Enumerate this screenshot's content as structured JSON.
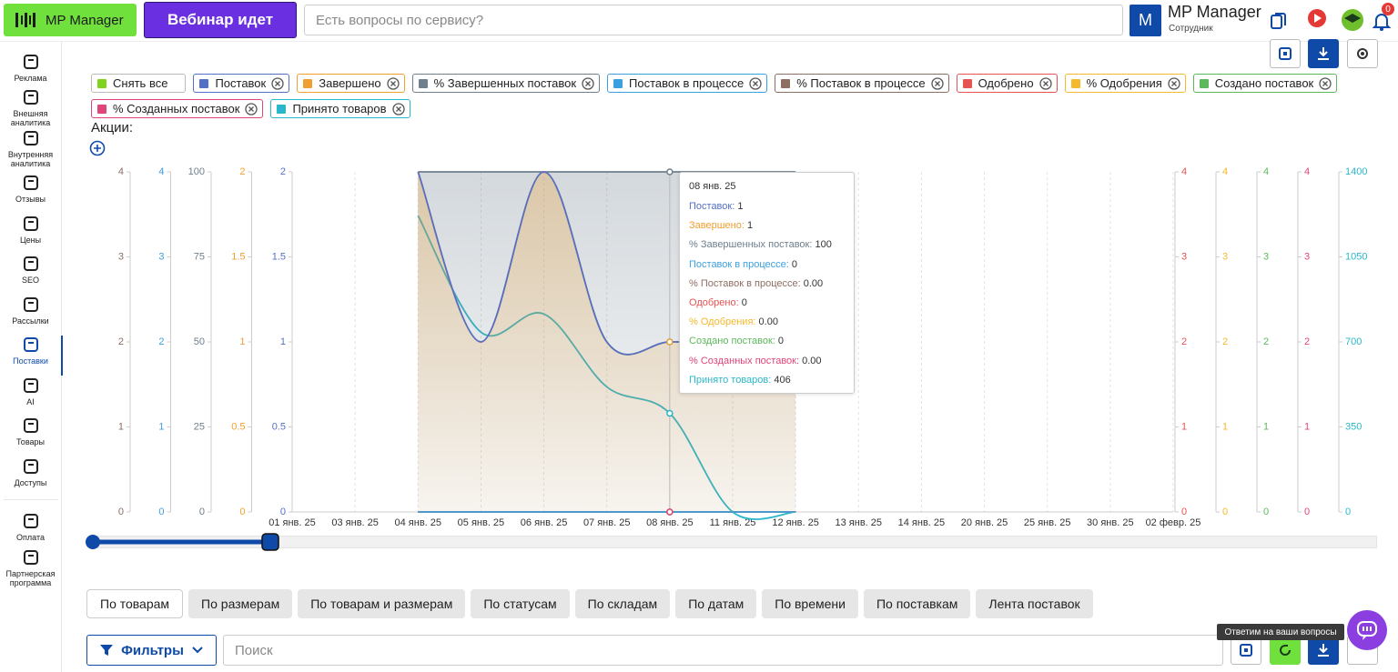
{
  "header": {
    "logo": "MP Manager",
    "webinar": "Вебинар идет",
    "search_placeholder": "Есть вопросы по сервису?",
    "avatar": "M",
    "user_name": "MP Manager",
    "user_role": "Сотрудник",
    "notifications": 0
  },
  "sidebar": {
    "active": 7,
    "items": [
      "Реклама",
      "Внешняя аналитика",
      "Внутренняя аналитика",
      "Отзывы",
      "Цены",
      "SEO",
      "Рассылки",
      "Поставки",
      "AI",
      "Товары",
      "Доступы",
      "Оплата",
      "Партнерская программа"
    ]
  },
  "legend": {
    "clear_all": "Снять все"
  },
  "promo_label": "Акции:",
  "chart_data": {
    "type": "line",
    "grid": true,
    "tooltip_index": 6,
    "categories": [
      "01 янв. 25",
      "03 янв. 25",
      "04 янв. 25",
      "05 янв. 25",
      "06 янв. 25",
      "07 янв. 25",
      "08 янв. 25",
      "11 янв. 25",
      "12 янв. 25",
      "13 янв. 25",
      "14 янв. 25",
      "20 янв. 25",
      "25 янв. 25",
      "30 янв. 25",
      "02 февр. 25"
    ],
    "series": [
      {
        "name": "Поставок",
        "color": "#5470c6",
        "axis_side": "left",
        "ylim": [
          0,
          2
        ],
        "yticks": [
          0,
          0.5,
          1,
          1.5,
          2
        ],
        "values": [
          null,
          null,
          2,
          1,
          2,
          1,
          1,
          1,
          1,
          null,
          null,
          null,
          null,
          null,
          null
        ]
      },
      {
        "name": "Завершено",
        "color": "#f0a030",
        "axis_side": "left",
        "area": true,
        "ylim": [
          0,
          2
        ],
        "yticks": [
          0,
          0.5,
          1,
          1.5,
          2
        ],
        "values": [
          null,
          null,
          2,
          1,
          2,
          1,
          1,
          1,
          1,
          null,
          null,
          null,
          null,
          null,
          null
        ]
      },
      {
        "name": "% Завершенных поставок",
        "color": "#6e7f8d",
        "axis_side": "left",
        "area": true,
        "ylim": [
          0,
          100
        ],
        "yticks": [
          0,
          25,
          50,
          75,
          100
        ],
        "values": [
          null,
          null,
          100,
          100,
          100,
          100,
          100,
          100,
          100,
          null,
          null,
          null,
          null,
          null,
          null
        ]
      },
      {
        "name": "Поставок в процессе",
        "color": "#3ba0e0",
        "axis_side": "left",
        "ylim": [
          0,
          4
        ],
        "yticks": [
          0,
          1,
          2,
          3,
          4
        ],
        "values": [
          null,
          null,
          0,
          0,
          0,
          0,
          0,
          0,
          0,
          null,
          null,
          null,
          null,
          null,
          null
        ]
      },
      {
        "name": "% Поставок в процессе",
        "color": "#8d6e63",
        "axis_side": "left",
        "ylim": [
          0,
          4
        ],
        "yticks": [
          0,
          1,
          2,
          3,
          4
        ],
        "values": [
          null,
          null,
          0,
          0,
          0,
          0,
          0,
          0,
          0,
          null,
          null,
          null,
          null,
          null,
          null
        ],
        "value_labels": [
          null,
          null,
          "0.00",
          "0.00",
          "0.00",
          "0.00",
          "0.00",
          "0.00",
          "0.00",
          null,
          null,
          null,
          null,
          null,
          null
        ]
      },
      {
        "name": "Одобрено",
        "color": "#e55353",
        "axis_side": "right",
        "ylim": [
          0,
          4
        ],
        "yticks": [
          0,
          1,
          2,
          3,
          4
        ],
        "values": [
          null,
          null,
          0,
          0,
          0,
          0,
          0,
          0,
          0,
          null,
          null,
          null,
          null,
          null,
          null
        ]
      },
      {
        "name": "% Одобрения",
        "color": "#f5b82e",
        "axis_side": "right",
        "ylim": [
          0,
          4
        ],
        "yticks": [
          0,
          1,
          2,
          3,
          4
        ],
        "values": [
          null,
          null,
          0,
          0,
          0,
          0,
          0,
          0,
          0,
          null,
          null,
          null,
          null,
          null,
          null
        ],
        "value_labels": [
          null,
          null,
          "0.00",
          "0.00",
          "0.00",
          "0.00",
          "0.00",
          "0.00",
          "0.00",
          null,
          null,
          null,
          null,
          null,
          null
        ]
      },
      {
        "name": "Создано поставок",
        "color": "#5cb85c",
        "axis_side": "right",
        "ylim": [
          0,
          4
        ],
        "yticks": [
          0,
          1,
          2,
          3,
          4
        ],
        "values": [
          null,
          null,
          0,
          0,
          0,
          0,
          0,
          0,
          0,
          null,
          null,
          null,
          null,
          null,
          null
        ]
      },
      {
        "name": "% Созданных поставок",
        "color": "#e0457b",
        "axis_side": "right",
        "ylim": [
          0,
          4
        ],
        "yticks": [
          0,
          1,
          2,
          3,
          4
        ],
        "values": [
          null,
          null,
          0,
          0,
          0,
          0,
          0,
          0,
          0,
          null,
          null,
          null,
          null,
          null,
          null
        ],
        "value_labels": [
          null,
          null,
          "0.00",
          "0.00",
          "0.00",
          "0.00",
          "0.00",
          "0.00",
          "0.00",
          null,
          null,
          null,
          null,
          null,
          null
        ]
      },
      {
        "name": "Принято товаров",
        "color": "#2ab7ca",
        "axis_side": "right",
        "ylim": [
          0,
          1400
        ],
        "yticks": [
          0,
          350,
          700,
          1050,
          1400
        ],
        "values": [
          null,
          null,
          1220,
          740,
          815,
          515,
          406,
          0,
          0,
          null,
          null,
          null,
          null,
          null,
          null
        ]
      }
    ]
  },
  "tabs": {
    "active": 0,
    "items": [
      "По товарам",
      "По размерам",
      "По товарам и размерам",
      "По статусам",
      "По складам",
      "По датам",
      "По времени",
      "По поставкам",
      "Лента поставок"
    ]
  },
  "filters": {
    "button": "Фильтры",
    "search_placeholder": "Поиск"
  },
  "help_tooltip": "Ответим на ваши вопросы"
}
